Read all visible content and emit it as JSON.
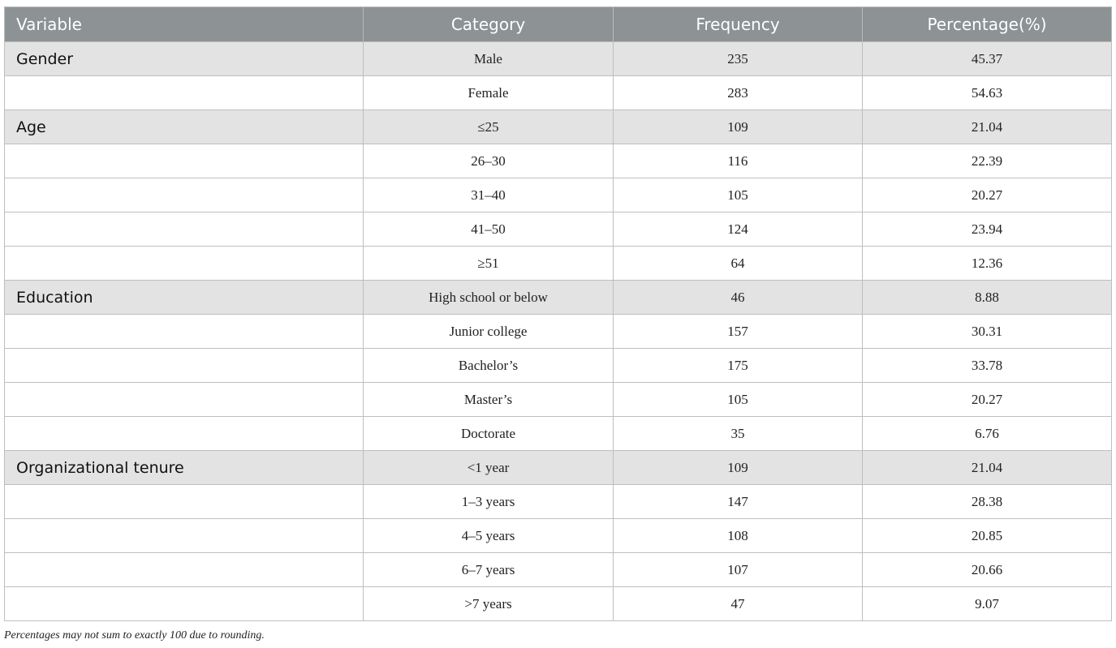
{
  "header": [
    "Variable",
    "Category",
    "Frequency",
    "Percentage(%)"
  ],
  "rows": [
    {
      "variable": "Gender",
      "category": "Male",
      "frequency": "235",
      "percentage": "45.37"
    },
    {
      "variable": "",
      "category": "Female",
      "frequency": "283",
      "percentage": "54.63"
    },
    {
      "variable": "Age",
      "category": "≤25",
      "frequency": "109",
      "percentage": "21.04"
    },
    {
      "variable": "",
      "category": "26–30",
      "frequency": "116",
      "percentage": "22.39"
    },
    {
      "variable": "",
      "category": "31–40",
      "frequency": "105",
      "percentage": "20.27"
    },
    {
      "variable": "",
      "category": "41–50",
      "frequency": "124",
      "percentage": "23.94"
    },
    {
      "variable": "",
      "category": "≥51",
      "frequency": "64",
      "percentage": "12.36"
    },
    {
      "variable": "Education",
      "category": "High school or below",
      "frequency": "46",
      "percentage": "8.88"
    },
    {
      "variable": "",
      "category": "Junior college",
      "frequency": "157",
      "percentage": "30.31"
    },
    {
      "variable": "",
      "category": "Bachelor’s",
      "frequency": "175",
      "percentage": "33.78"
    },
    {
      "variable": "",
      "category": "Master’s",
      "frequency": "105",
      "percentage": "20.27"
    },
    {
      "variable": "",
      "category": "Doctorate",
      "frequency": "35",
      "percentage": "6.76"
    },
    {
      "variable": "Organizational tenure",
      "category": "<1 year",
      "frequency": "109",
      "percentage": "21.04"
    },
    {
      "variable": "",
      "category": "1–3 years",
      "frequency": "147",
      "percentage": "28.38"
    },
    {
      "variable": "",
      "category": "4–5 years",
      "frequency": "108",
      "percentage": "20.85"
    },
    {
      "variable": "",
      "category": "6–7 years",
      "frequency": "107",
      "percentage": "20.66"
    },
    {
      "variable": "",
      "category": ">7 years",
      "frequency": "47",
      "percentage": "9.07"
    }
  ],
  "footnote": "Percentages may not sum to exactly 100 due to rounding.",
  "colors": {
    "header_bg": "#8d9294",
    "group_row_bg": "#e2e3e2"
  }
}
